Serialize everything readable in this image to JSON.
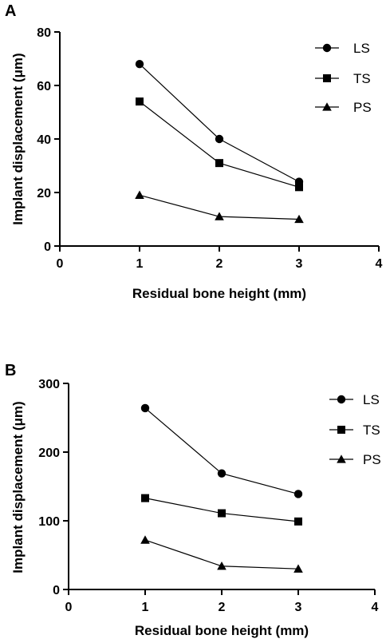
{
  "chart_data": [
    {
      "panel": "A",
      "type": "line",
      "xlabel": "Residual bone height (mm)",
      "ylabel": "Implant displacement (μm)",
      "xlim": [
        0,
        4
      ],
      "ylim": [
        0,
        80
      ],
      "xticks": [
        0,
        1,
        2,
        3,
        4
      ],
      "yticks": [
        0,
        20,
        40,
        60,
        80
      ],
      "x": [
        1,
        2,
        3
      ],
      "series": [
        {
          "name": "LS",
          "marker": "circle",
          "values": [
            68,
            40,
            24
          ]
        },
        {
          "name": "TS",
          "marker": "square",
          "values": [
            54,
            31,
            22
          ]
        },
        {
          "name": "PS",
          "marker": "triangle",
          "values": [
            19,
            11,
            10
          ]
        }
      ],
      "legend": "top-right",
      "grid": false
    },
    {
      "panel": "B",
      "type": "line",
      "xlabel": "Residual bone height (mm)",
      "ylabel": "Implant displacement (μm)",
      "xlim": [
        0,
        4
      ],
      "ylim": [
        0,
        300
      ],
      "xticks": [
        0,
        1,
        2,
        3,
        4
      ],
      "yticks": [
        0,
        100,
        200,
        300
      ],
      "x": [
        1,
        2,
        3
      ],
      "series": [
        {
          "name": "LS",
          "marker": "circle",
          "values": [
            264,
            169,
            139
          ]
        },
        {
          "name": "TS",
          "marker": "square",
          "values": [
            133,
            111,
            99
          ]
        },
        {
          "name": "PS",
          "marker": "triangle",
          "values": [
            72,
            34,
            30
          ]
        }
      ],
      "legend": "top-right",
      "grid": false
    }
  ]
}
